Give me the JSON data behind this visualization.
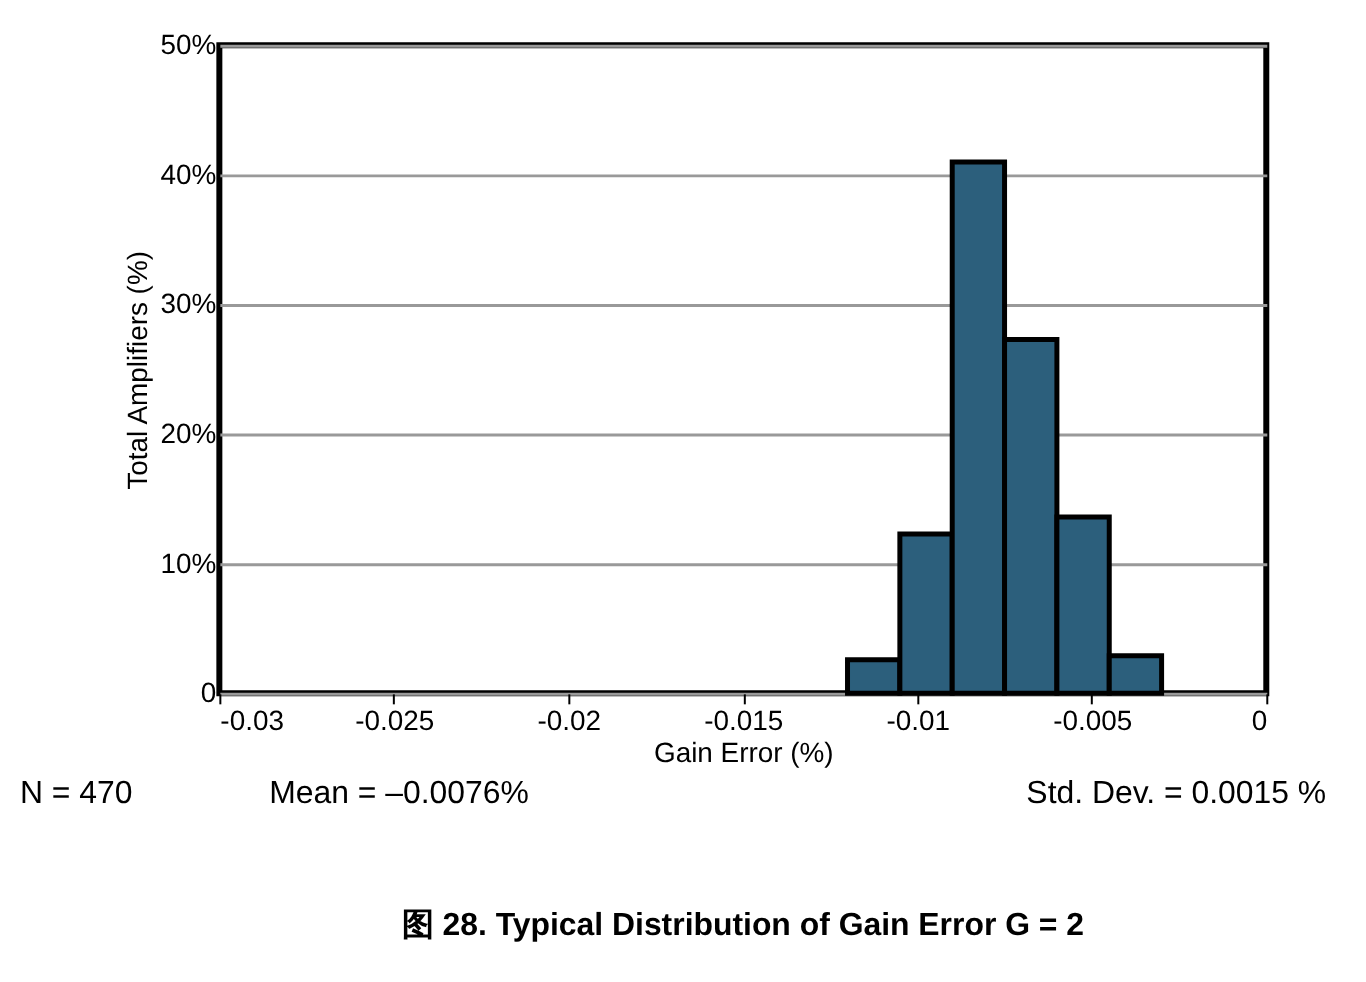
{
  "chart_data": {
    "type": "histogram",
    "title": "图 28. Typical Distribution of Gain Error G = 2",
    "xlabel": "Gain Error (%)",
    "ylabel": "Total Amplifiers (%)",
    "bins": [
      -0.012,
      -0.0105,
      -0.009,
      -0.0075,
      -0.006,
      -0.0045,
      -0.003
    ],
    "values": [
      2.6,
      12.3,
      41,
      27.3,
      13.6,
      2.9
    ],
    "color": "#2c5f7c",
    "xlim": [
      -0.03,
      0
    ],
    "xticks": [
      -0.03,
      -0.025,
      -0.02,
      -0.015,
      -0.01,
      -0.005,
      0
    ],
    "ylim": [
      0,
      50
    ],
    "yticks": [
      0,
      {
        "value": 10,
        "label": "10%"
      },
      {
        "value": 20,
        "label": "20%"
      },
      {
        "value": 30,
        "label": "30%"
      },
      {
        "value": 40,
        "label": "40%"
      },
      {
        "value": 50,
        "label": "50%"
      }
    ],
    "grid": "y",
    "annotations": [
      "N = 470",
      "Mean = –0.0076%",
      "Std. Dev. = 0.0015 %"
    ]
  }
}
